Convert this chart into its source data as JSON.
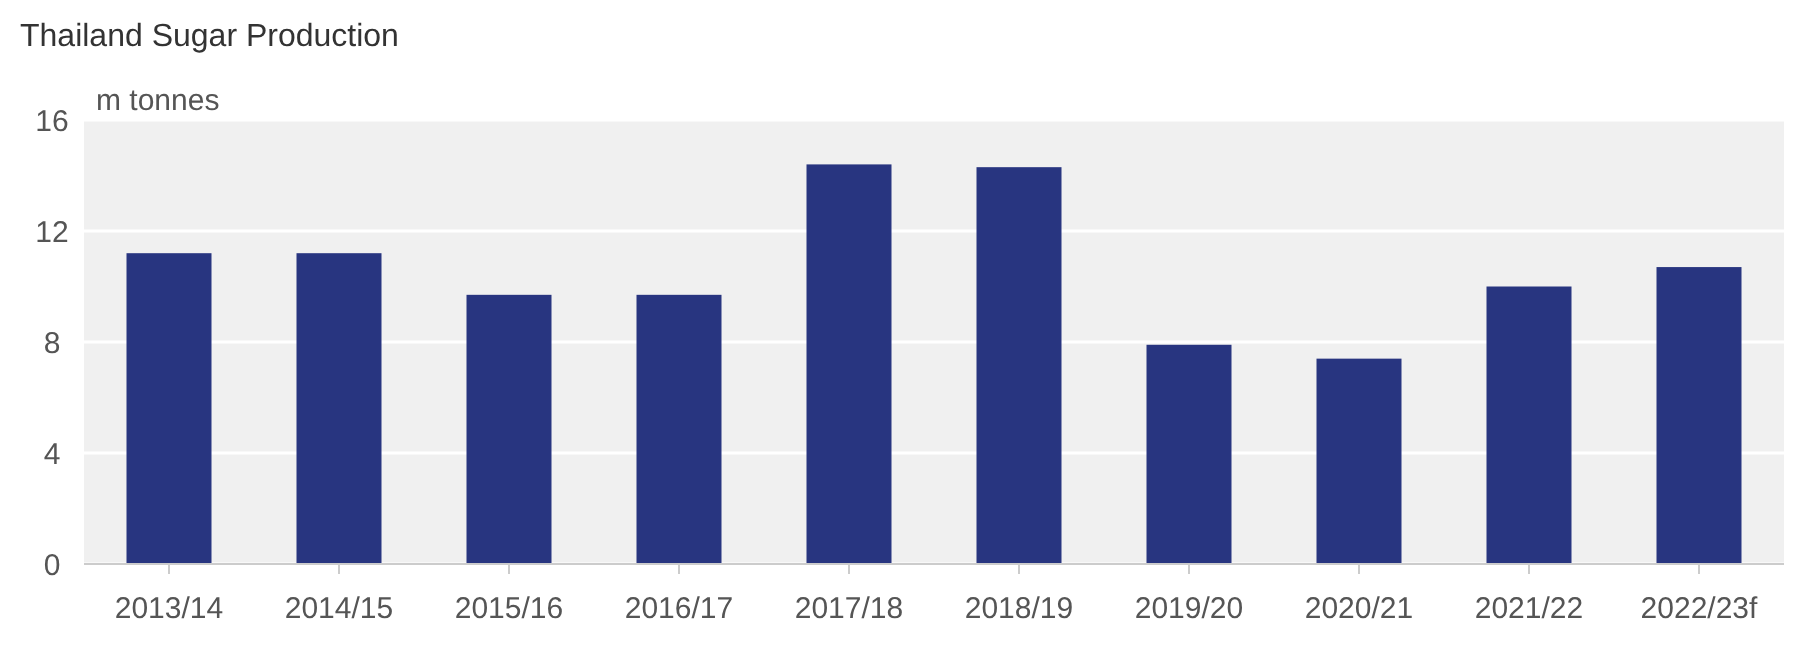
{
  "chart_data": {
    "type": "bar",
    "title": "Thailand Sugar Production",
    "ylabel": "m tonnes",
    "categories": [
      "2013/14",
      "2014/15",
      "2015/16",
      "2016/17",
      "2017/18",
      "2018/19",
      "2019/20",
      "2020/21",
      "2021/22",
      "2022/23f"
    ],
    "values": [
      11.2,
      11.2,
      9.7,
      9.7,
      14.4,
      14.3,
      7.9,
      7.4,
      10.0,
      10.7
    ],
    "color": "#283580",
    "ylim": [
      0,
      16
    ],
    "yticks": [
      0,
      4,
      8,
      12,
      16
    ],
    "grid": "y"
  }
}
